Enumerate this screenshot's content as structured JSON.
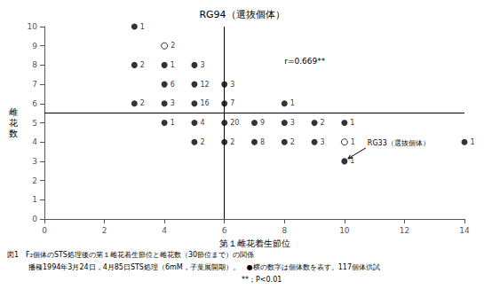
{
  "chart_data": {
    "type": "scatter",
    "title": "RG94（選抜個体）",
    "xlabel": "第１雌花着生節位",
    "ylabel": "雌\n花\n数",
    "xlim": [
      0,
      14
    ],
    "ylim": [
      0,
      10
    ],
    "xticks": [
      0,
      2,
      4,
      6,
      8,
      10,
      12,
      14
    ],
    "yticks": [
      0,
      1,
      2,
      3,
      4,
      5,
      6,
      7,
      8,
      9,
      10
    ],
    "grid": false,
    "vline_x": 6,
    "hline_y": 5.5,
    "series": [
      {
        "marker": "filled",
        "color": "#000000",
        "x": [
          3,
          3,
          4,
          5,
          4,
          5,
          3,
          4,
          5,
          4,
          5,
          5,
          6,
          6,
          8,
          6,
          7,
          8,
          9,
          10,
          6,
          7,
          8,
          9,
          14,
          10
        ],
        "y": [
          10,
          8,
          8,
          8,
          7,
          7,
          6,
          6,
          6,
          5,
          5,
          4,
          7,
          6,
          6,
          5,
          5,
          5,
          5,
          5,
          4,
          4,
          4,
          4,
          4,
          3
        ],
        "n": [
          1,
          2,
          1,
          3,
          6,
          12,
          2,
          3,
          16,
          1,
          4,
          2,
          3,
          7,
          1,
          20,
          9,
          3,
          2,
          1,
          2,
          8,
          2,
          3,
          1,
          1
        ]
      },
      {
        "marker": "open",
        "color": "#000000",
        "x": [
          4,
          10
        ],
        "y": [
          9,
          4
        ],
        "n": [
          2,
          1
        ]
      }
    ],
    "annotations": [
      {
        "text": "r=0.669**",
        "x": 8.0,
        "y": 8.2
      },
      {
        "text": "RG33（選抜個体）",
        "x": 10,
        "y": 3,
        "arrow": true
      }
    ],
    "caption": [
      "図1　F₂個体のSTS処理後の第１雌花着生節位と雌花数（30節位まで）の関係",
      "　　　播種1994年3月24日，4月85日STS処理（6mM，子葉展開期）。　●横の数字は個体数を表す。117個体供試",
      "　　　　　　　　　　　　　　　　　　　　　　　　　　　　　　　　　**；P<0.01"
    ]
  }
}
